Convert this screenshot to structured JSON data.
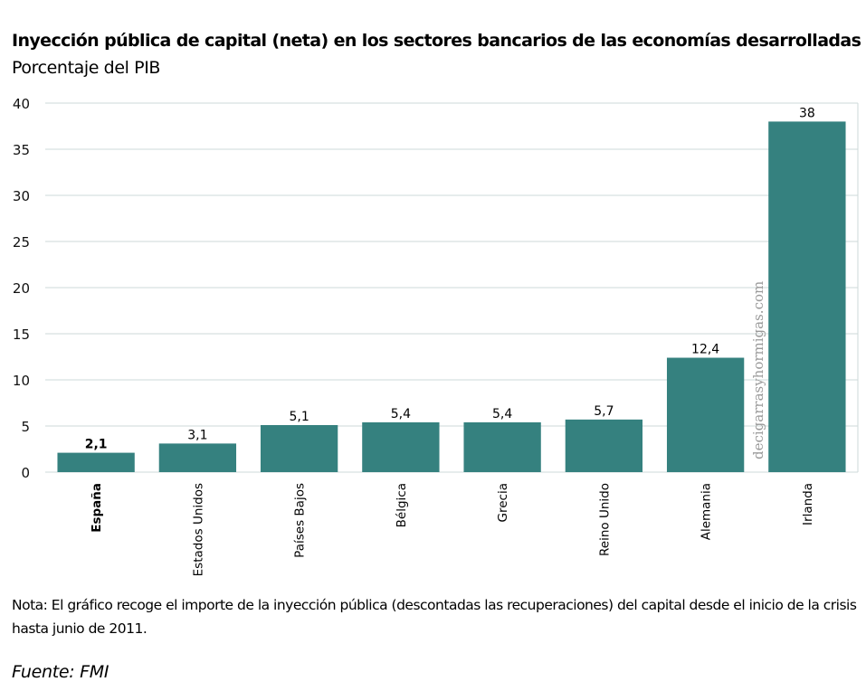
{
  "header": {
    "title": "Inyección pública de capital (neta) en los sectores bancarios de las economías desarrolladas",
    "subtitle": "Porcentaje del PIB"
  },
  "footer": {
    "note": "Nota: El gráfico recoge el importe de la inyección pública (descontadas las recuperaciones) del capital desde el inicio de la crisis hasta junio de 2011.",
    "source": "Fuente: FMI"
  },
  "watermark": "decigarrasyhormigas.com",
  "colors": {
    "bar": "#35817f",
    "grid": "#cdd9d9"
  },
  "chart_data": {
    "type": "bar",
    "title": "Inyección pública de capital (neta) en los sectores bancarios de las economías desarrolladas",
    "subtitle": "Porcentaje del PIB",
    "xlabel": "",
    "ylabel": "",
    "categories": [
      "España",
      "Estados Unidos",
      "Países Bajos",
      "Bélgica",
      "Grecia",
      "Reino Unido",
      "Alemania",
      "Irlanda"
    ],
    "values": [
      2.1,
      3.1,
      5.1,
      5.4,
      5.4,
      5.7,
      12.4,
      38
    ],
    "data_labels": [
      "2,1",
      "3,1",
      "5,1",
      "5,4",
      "5,4",
      "5,7",
      "12,4",
      "38"
    ],
    "highlighted_category": "España",
    "ylim": [
      0,
      40
    ],
    "yticks": [
      0,
      5,
      10,
      15,
      20,
      25,
      30,
      35,
      40
    ],
    "grid": true,
    "legend": "none"
  }
}
